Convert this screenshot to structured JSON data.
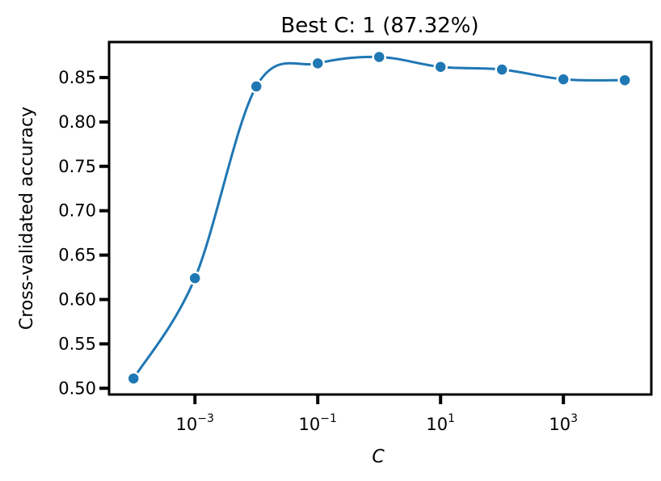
{
  "chart_data": {
    "type": "line",
    "title": "Best C: 1 (87.32%)",
    "xlabel": "C",
    "ylabel": "Cross-validated accuracy",
    "x_scale": "log",
    "x": [
      0.0001,
      0.001,
      0.01,
      0.1,
      1,
      10,
      100,
      1000,
      10000
    ],
    "series": [
      {
        "values": [
          0.511,
          0.624,
          0.84,
          0.866,
          0.8732,
          0.862,
          0.859,
          0.848,
          0.847
        ]
      }
    ],
    "x_ticks": [
      {
        "value": 0.001,
        "base": "10",
        "exp": "−3"
      },
      {
        "value": 0.1,
        "base": "10",
        "exp": "−1"
      },
      {
        "value": 10,
        "base": "10",
        "exp": "1"
      },
      {
        "value": 1000,
        "base": "10",
        "exp": "3"
      }
    ],
    "y_ticks": [
      "0.50",
      "0.55",
      "0.60",
      "0.65",
      "0.70",
      "0.75",
      "0.80",
      "0.85"
    ],
    "xlim": [
      4e-05,
      27000
    ],
    "ylim": [
      0.493,
      0.89
    ],
    "grid": false,
    "line_color": "#1f77b4"
  }
}
